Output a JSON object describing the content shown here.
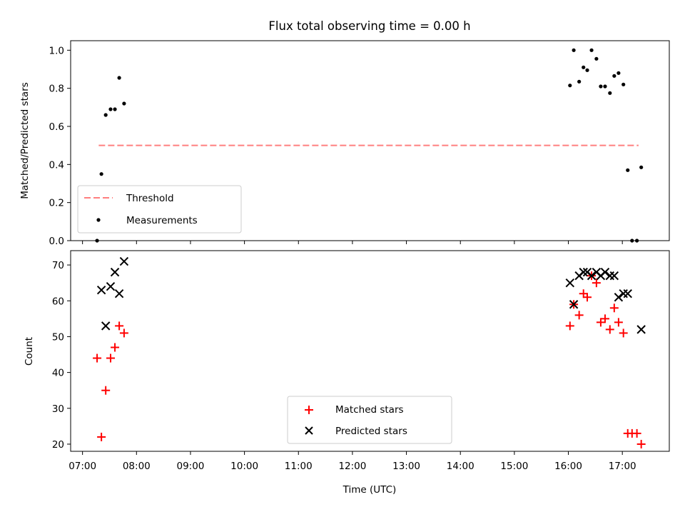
{
  "chart_data": [
    {
      "type": "scatter",
      "title": "Flux total observing time = 0.00 h",
      "xlabel": "",
      "ylabel": "Matched/Predicted stars",
      "ylim": [
        0,
        1.05
      ],
      "yticks": [
        "0.0",
        "0.2",
        "0.4",
        "0.6",
        "0.8",
        "1.0"
      ],
      "threshold": {
        "name": "Threshold",
        "value": 0.5,
        "x_range": [
          7.3,
          17.3
        ],
        "color": "#ff7f7f"
      },
      "series": [
        {
          "name": "Measurements",
          "color": "#000000",
          "marker": "dot",
          "points": [
            [
              7.27,
              0.0
            ],
            [
              7.35,
              0.35
            ],
            [
              7.43,
              0.66
            ],
            [
              7.52,
              0.69
            ],
            [
              7.6,
              0.69
            ],
            [
              7.68,
              0.855
            ],
            [
              7.77,
              0.72
            ],
            [
              16.03,
              0.815
            ],
            [
              16.1,
              1.0
            ],
            [
              16.2,
              0.835
            ],
            [
              16.28,
              0.91
            ],
            [
              16.35,
              0.895
            ],
            [
              16.43,
              1.0
            ],
            [
              16.52,
              0.955
            ],
            [
              16.6,
              0.81
            ],
            [
              16.68,
              0.81
            ],
            [
              16.77,
              0.775
            ],
            [
              16.85,
              0.865
            ],
            [
              16.93,
              0.88
            ],
            [
              17.02,
              0.82
            ],
            [
              17.1,
              0.37
            ],
            [
              17.18,
              0.0
            ],
            [
              17.27,
              0.0
            ],
            [
              17.35,
              0.385
            ]
          ]
        }
      ],
      "legend": {
        "position": "lower-left",
        "entries": [
          "Threshold",
          "Measurements"
        ]
      }
    },
    {
      "type": "scatter",
      "title": "",
      "xlabel": "Time (UTC)",
      "ylabel": "Count",
      "ylim": [
        18,
        74
      ],
      "yticks": [
        "20",
        "30",
        "40",
        "50",
        "60",
        "70"
      ],
      "xticks": [
        "07:00",
        "08:00",
        "09:00",
        "10:00",
        "11:00",
        "12:00",
        "13:00",
        "14:00",
        "15:00",
        "16:00",
        "17:00"
      ],
      "xlim": [
        6.78,
        17.87
      ],
      "series": [
        {
          "name": "Matched stars",
          "color": "#ff0000",
          "marker": "plus",
          "points": [
            [
              7.27,
              44
            ],
            [
              7.35,
              22
            ],
            [
              7.43,
              35
            ],
            [
              7.52,
              44
            ],
            [
              7.6,
              47
            ],
            [
              7.68,
              53
            ],
            [
              7.77,
              51
            ],
            [
              16.03,
              53
            ],
            [
              16.1,
              59
            ],
            [
              16.2,
              56
            ],
            [
              16.28,
              62
            ],
            [
              16.35,
              61
            ],
            [
              16.43,
              67
            ],
            [
              16.52,
              65
            ],
            [
              16.6,
              54
            ],
            [
              16.68,
              55
            ],
            [
              16.77,
              52
            ],
            [
              16.85,
              58
            ],
            [
              16.93,
              54
            ],
            [
              17.02,
              51
            ],
            [
              17.1,
              23
            ],
            [
              17.18,
              23
            ],
            [
              17.27,
              23
            ],
            [
              17.35,
              20
            ]
          ]
        },
        {
          "name": "Predicted stars",
          "color": "#000000",
          "marker": "x",
          "points": [
            [
              7.35,
              63
            ],
            [
              7.43,
              53
            ],
            [
              7.52,
              64
            ],
            [
              7.6,
              68
            ],
            [
              7.68,
              62
            ],
            [
              7.77,
              71
            ],
            [
              16.03,
              65
            ],
            [
              16.1,
              59
            ],
            [
              16.2,
              67
            ],
            [
              16.28,
              68
            ],
            [
              16.35,
              68
            ],
            [
              16.43,
              67
            ],
            [
              16.52,
              68
            ],
            [
              16.6,
              67
            ],
            [
              16.68,
              68
            ],
            [
              16.77,
              67
            ],
            [
              16.85,
              67
            ],
            [
              16.93,
              61
            ],
            [
              17.02,
              62
            ],
            [
              17.1,
              62
            ],
            [
              17.35,
              52
            ]
          ]
        }
      ],
      "legend": {
        "position": "lower-center",
        "entries": [
          "Matched stars",
          "Predicted stars"
        ]
      }
    }
  ]
}
